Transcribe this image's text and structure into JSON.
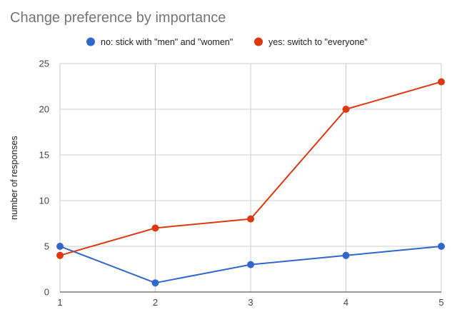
{
  "chart_data": {
    "type": "line",
    "title": "Change preference by importance",
    "xlabel": "",
    "ylabel": "number of responses",
    "x": [
      1,
      2,
      3,
      4,
      5
    ],
    "xticks": [
      "1",
      "2",
      "3",
      "4",
      "5"
    ],
    "xlim": [
      1,
      5
    ],
    "ylim": [
      0,
      25
    ],
    "yticks": [
      "0",
      "5",
      "10",
      "15",
      "20",
      "25"
    ],
    "grid": true,
    "legend_position": "top",
    "series": [
      {
        "name": "no: stick with \"men\" and \"women\"",
        "color": "#3366cc",
        "values": [
          5,
          1,
          3,
          4,
          5
        ]
      },
      {
        "name": "yes: switch to \"everyone\"",
        "color": "#dc3912",
        "values": [
          4,
          7,
          8,
          20,
          23
        ]
      }
    ]
  }
}
